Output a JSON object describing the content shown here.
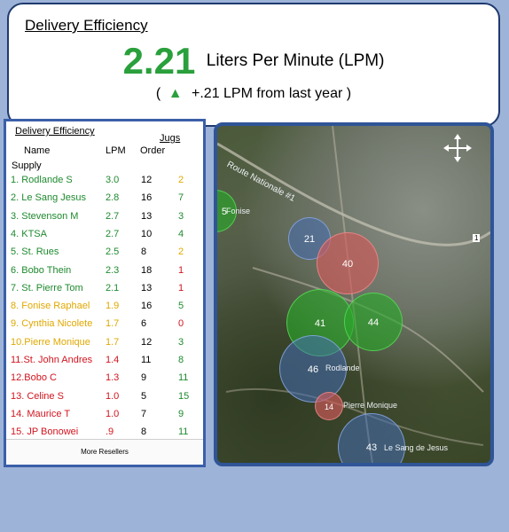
{
  "header": {
    "title": "Delivery Efficiency",
    "value": "2.21",
    "unit": "Liters Per Minute (LPM)",
    "change_open": "(",
    "change_text": "+.21 LPM from last year )",
    "arrow_icon": "triangle-up-icon",
    "accent_color": "#2aa03c"
  },
  "table": {
    "title": "Delivery Efficiency",
    "jugs_label": "Jugs",
    "headers": {
      "name": "Name",
      "lpm": "LPM",
      "order": "Order"
    },
    "supply_label": "Supply",
    "rows": [
      {
        "name": "1.  Rodlande S",
        "lpm": "3.0",
        "order": "12",
        "jugs": "2",
        "lpm_color": "green",
        "jugs_color": "amber"
      },
      {
        "name": "2.  Le Sang Jesus",
        "lpm": "2.8",
        "order": "16",
        "jugs": "7",
        "lpm_color": "green",
        "jugs_color": "green"
      },
      {
        "name": "3.  Stevenson M",
        "lpm": "2.7",
        "order": "13",
        "jugs": "3",
        "lpm_color": "green",
        "jugs_color": "green"
      },
      {
        "name": "4.  KTSA",
        "lpm": "2.7",
        "order": "10",
        "jugs": "4",
        "lpm_color": "green",
        "jugs_color": "green"
      },
      {
        "name": "5.  St. Rues",
        "lpm": "2.5",
        "order": "8",
        "jugs": "2",
        "lpm_color": "green",
        "jugs_color": "amber"
      },
      {
        "name": "6.  Bobo Thein",
        "lpm": "2.3",
        "order": "18",
        "jugs": "1",
        "lpm_color": "green",
        "jugs_color": "red"
      },
      {
        "name": "7.  St. Pierre Tom",
        "lpm": "2.1",
        "order": "13",
        "jugs": "1",
        "lpm_color": "green",
        "jugs_color": "red"
      },
      {
        "name": "8.  Fonise Raphael",
        "lpm": "1.9",
        "order": "16",
        "jugs": "5",
        "lpm_color": "amber",
        "jugs_color": "green"
      },
      {
        "name": "9.  Cynthia Nicolete",
        "lpm": "1.7",
        "order": "6",
        "jugs": "0",
        "lpm_color": "amber",
        "jugs_color": "red"
      },
      {
        "name": "10.Pierre Monique",
        "lpm": "1.7",
        "order": "12",
        "jugs": "3",
        "lpm_color": "amber",
        "jugs_color": "green"
      },
      {
        "name": "11.St. John Andres",
        "lpm": "1.4",
        "order": "11",
        "jugs": "8",
        "lpm_color": "red",
        "jugs_color": "green"
      },
      {
        "name": "12.Bobo C",
        "lpm": "1.3",
        "order": "9",
        "jugs": "11",
        "lpm_color": "red",
        "jugs_color": "green"
      },
      {
        "name": "13. Celine S",
        "lpm": "1.0",
        "order": "5",
        "jugs": "15",
        "lpm_color": "red",
        "jugs_color": "green"
      },
      {
        "name": "14. Maurice T",
        "lpm": "1.0",
        "order": "7",
        "jugs": "9",
        "lpm_color": "red",
        "jugs_color": "green"
      },
      {
        "name": "15. JP Bonowei",
        "lpm": ".9",
        "order": "8",
        "jugs": "11",
        "lpm_color": "red",
        "jugs_color": "green"
      }
    ],
    "more_button": "More Resellers"
  },
  "map": {
    "pan_icon": "move-arrows-icon",
    "bubbles": [
      {
        "value": "5",
        "color": "green"
      },
      {
        "value": "21",
        "color": "blue"
      },
      {
        "value": "40",
        "color": "red"
      },
      {
        "value": "41",
        "color": "green"
      },
      {
        "value": "44",
        "color": "green"
      },
      {
        "value": "46",
        "color": "blue"
      },
      {
        "value": "14",
        "color": "red"
      },
      {
        "value": "43",
        "color": "blue"
      }
    ],
    "labels": {
      "route": "Route Nationale #1",
      "fonise": "Fonise",
      "rodlande": "Rodlande",
      "pierre_monique": "Pierre Monique",
      "le_sang": "Le Sang de Jesus",
      "route_num": "1"
    }
  }
}
